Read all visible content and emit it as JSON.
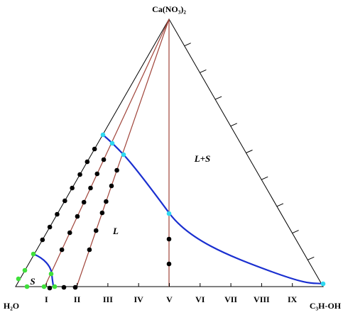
{
  "apex_labels": {
    "top": "Ca(NO₃)₂",
    "left": "H₂O",
    "right": "C₃H-OH"
  },
  "axis_labels": [
    "I",
    "II",
    "III",
    "IV",
    "V",
    "VI",
    "VII",
    "VIII",
    "IX"
  ],
  "regions": {
    "solid": "S",
    "liquid": "L",
    "liquid_solid": "L+S"
  }
}
